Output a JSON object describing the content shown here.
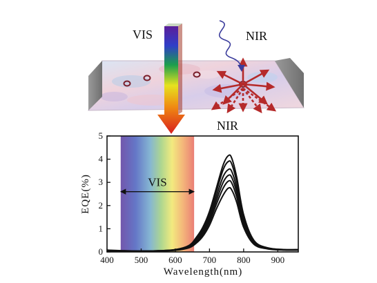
{
  "figure": {
    "top_labels": {
      "vis": "VIS",
      "nir_in": "NIR",
      "nir_out": "NIR"
    },
    "colors": {
      "arrow_red": "#b52a2a",
      "curve": "#111111",
      "panel_side": "#8a8a8a"
    }
  },
  "chart_data": {
    "type": "line",
    "xlabel": "Wavelength(nm)",
    "ylabel": "EQE(%)",
    "xlim": [
      400,
      960
    ],
    "ylim": [
      0,
      5
    ],
    "xticks": [
      400,
      500,
      600,
      700,
      800,
      900
    ],
    "yticks": [
      0,
      1,
      2,
      3,
      4,
      5
    ],
    "annotation": {
      "text": "VIS",
      "from": 440,
      "to": 655,
      "y": 2.6
    },
    "visible_band": {
      "from": 440,
      "to": 655
    },
    "x": [
      400,
      450,
      500,
      550,
      600,
      640,
      660,
      680,
      700,
      720,
      740,
      755,
      765,
      780,
      800,
      830,
      870,
      920,
      960
    ],
    "series": [
      {
        "values": [
          0.08,
          0.05,
          0.04,
          0.05,
          0.1,
          0.28,
          0.6,
          1.05,
          1.75,
          2.75,
          3.75,
          4.15,
          4.05,
          3.2,
          1.6,
          0.5,
          0.18,
          0.1,
          0.1
        ]
      },
      {
        "values": [
          0.07,
          0.05,
          0.04,
          0.05,
          0.1,
          0.26,
          0.55,
          0.98,
          1.65,
          2.6,
          3.55,
          3.9,
          3.8,
          3.0,
          1.5,
          0.47,
          0.17,
          0.1,
          0.1
        ]
      },
      {
        "values": [
          0.06,
          0.04,
          0.04,
          0.05,
          0.09,
          0.24,
          0.5,
          0.9,
          1.52,
          2.4,
          3.25,
          3.55,
          3.48,
          2.75,
          1.38,
          0.44,
          0.16,
          0.09,
          0.09
        ]
      },
      {
        "values": [
          0.05,
          0.04,
          0.03,
          0.04,
          0.08,
          0.22,
          0.45,
          0.82,
          1.4,
          2.22,
          3.0,
          3.3,
          3.22,
          2.55,
          1.28,
          0.4,
          0.15,
          0.09,
          0.09
        ]
      },
      {
        "values": [
          0.05,
          0.04,
          0.03,
          0.04,
          0.08,
          0.2,
          0.4,
          0.74,
          1.28,
          2.05,
          2.75,
          3.05,
          2.98,
          2.35,
          1.18,
          0.37,
          0.14,
          0.08,
          0.08
        ]
      },
      {
        "values": [
          0.04,
          0.03,
          0.03,
          0.04,
          0.07,
          0.18,
          0.36,
          0.66,
          1.15,
          1.85,
          2.45,
          2.75,
          2.68,
          2.12,
          1.06,
          0.33,
          0.13,
          0.08,
          0.08
        ]
      }
    ]
  }
}
